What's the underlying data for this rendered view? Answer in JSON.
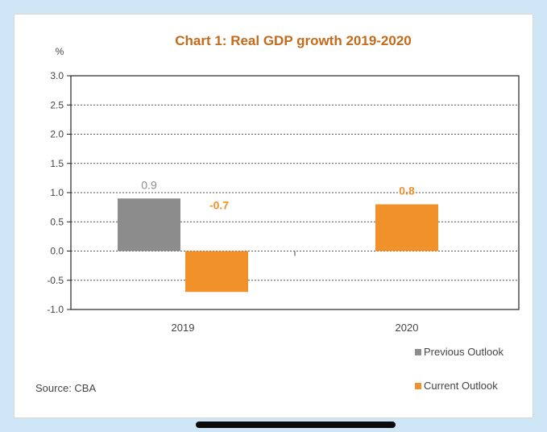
{
  "chart_data": {
    "type": "bar",
    "title": "Chart 1: Real GDP growth 2019-2020",
    "ylabel": "%",
    "ylim": [
      -1.0,
      3.0
    ],
    "yticks": [
      "3.0",
      "2.5",
      "2.0",
      "1.5",
      "1.0",
      "0.5",
      "0.0",
      "-0.5",
      "-1.0"
    ],
    "ytick_values": [
      3.0,
      2.5,
      2.0,
      1.5,
      1.0,
      0.5,
      0.0,
      -0.5,
      -1.0
    ],
    "categories": [
      "2019",
      "2020"
    ],
    "series": [
      {
        "name": "Previous Outlook",
        "color": "#8c8c8c",
        "values": [
          0.9,
          null
        ],
        "labels": [
          "0.9",
          ""
        ],
        "label_color": "#8c8c8c"
      },
      {
        "name": "Current Outlook",
        "color": "#f0912a",
        "values": [
          -0.7,
          0.8
        ],
        "labels": [
          "-0.7",
          "0.8"
        ],
        "label_color": "#f0912a"
      }
    ],
    "grid": true,
    "legend_position": "bottom-right",
    "source": "Source: CBA",
    "title_color": "#c46a1a"
  }
}
